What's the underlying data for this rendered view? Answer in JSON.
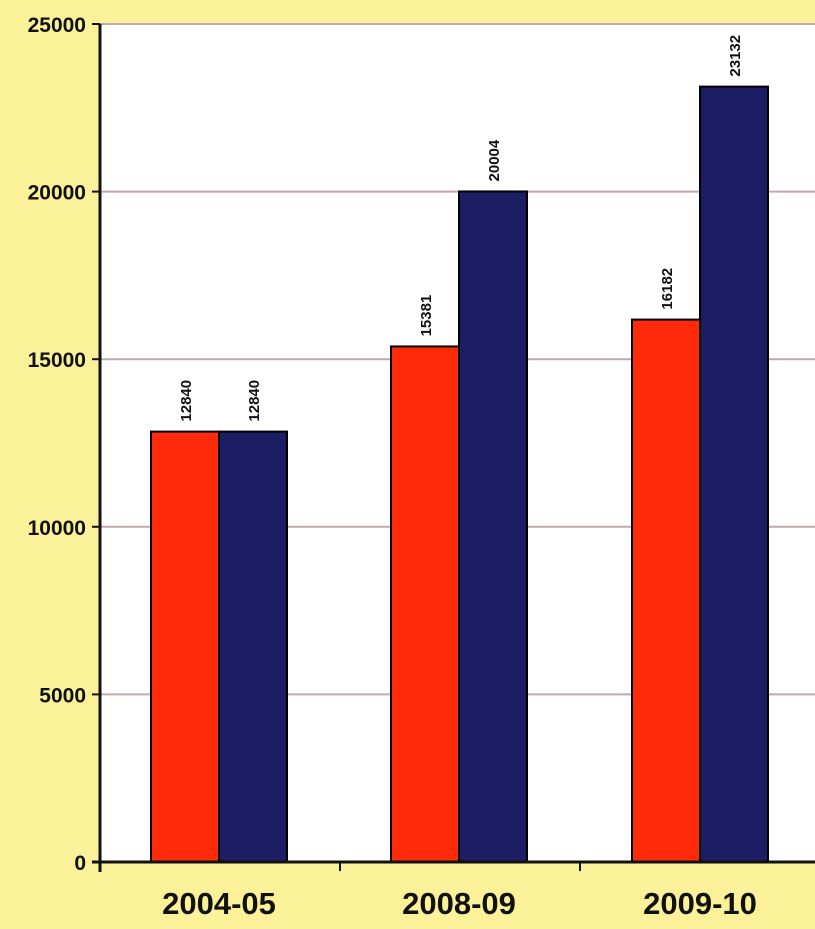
{
  "colors": {
    "page_background": "#fbf199",
    "plot_background": "#ffffff",
    "gridline": "#c3a9a9",
    "axis": "#111111",
    "series_a": "#ff2a0a",
    "series_b": "#1c1d63"
  },
  "chart_data": {
    "type": "bar",
    "title": "",
    "xlabel": "",
    "ylabel": "",
    "categories": [
      "2004-05",
      "2008-09",
      "2009-10"
    ],
    "series": [
      {
        "values": [
          12840,
          15381,
          16182
        ],
        "color": "#ff2a0a"
      },
      {
        "values": [
          12840,
          20004,
          23132
        ],
        "color": "#1c1d63"
      }
    ],
    "ylim": [
      0,
      25000
    ],
    "yticks": [
      0,
      5000,
      10000,
      15000,
      20000,
      25000
    ],
    "ytick_labels": [
      "0",
      "5000",
      "10000",
      "15000",
      "20000",
      "25000"
    ],
    "data_labels": [
      [
        "12840",
        "15381",
        "16182"
      ],
      [
        "12840",
        "20004",
        "23132"
      ]
    ],
    "grid": true,
    "legend": "none"
  }
}
